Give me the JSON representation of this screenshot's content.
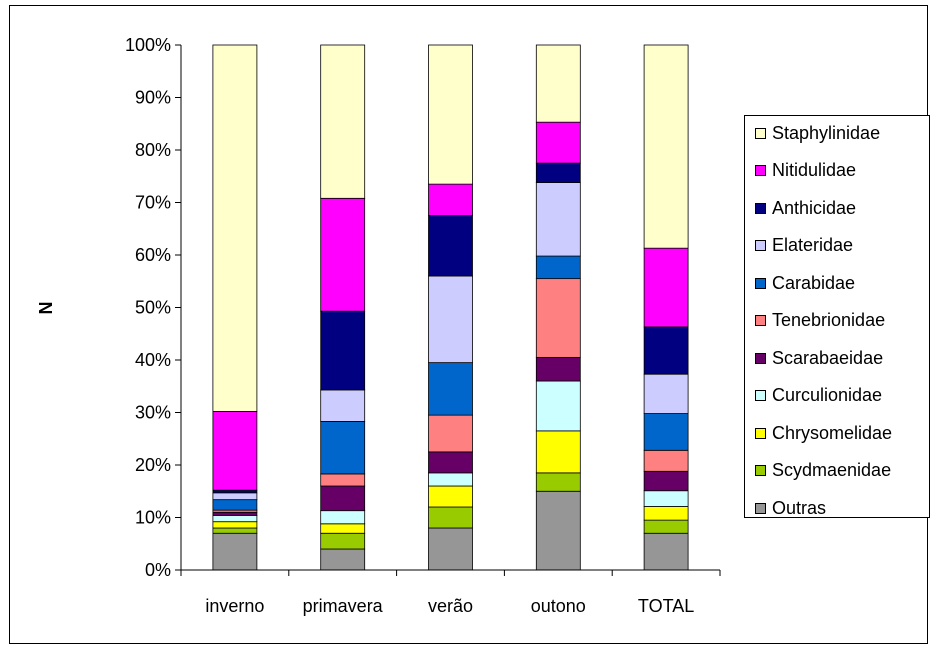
{
  "chart_data": {
    "type": "bar",
    "stacked": "percent",
    "categories": [
      "inverno",
      "primavera",
      "verão",
      "outono",
      "TOTAL"
    ],
    "ylabel": "N",
    "ylim": [
      0,
      100
    ],
    "yticks": [
      "0%",
      "10%",
      "20%",
      "30%",
      "40%",
      "50%",
      "60%",
      "70%",
      "80%",
      "90%",
      "100%"
    ],
    "grid": false,
    "legend_position": "right",
    "series": [
      {
        "name": "Outras",
        "color": "#969696",
        "values": [
          7,
          4,
          8,
          15,
          7
        ]
      },
      {
        "name": "Scydmaenidae",
        "color": "#99CC00",
        "values": [
          1,
          3,
          4,
          3.5,
          2.5
        ]
      },
      {
        "name": "Chrysomelidae",
        "color": "#FFFF00",
        "values": [
          1.2,
          1.8,
          4,
          8,
          2.6
        ]
      },
      {
        "name": "Curculionidae",
        "color": "#CCFFFF",
        "values": [
          1.2,
          2.5,
          2.5,
          9.5,
          3
        ]
      },
      {
        "name": "Scarabaeidae",
        "color": "#660066",
        "values": [
          0.6,
          4.7,
          4,
          4.5,
          3.7
        ]
      },
      {
        "name": "Tenebrionidae",
        "color": "#FF8080",
        "values": [
          0.4,
          2.3,
          7,
          15,
          4
        ]
      },
      {
        "name": "Carabidae",
        "color": "#0066CC",
        "values": [
          2,
          10,
          10,
          4.3,
          7
        ]
      },
      {
        "name": "Elateridae",
        "color": "#CCCCFF",
        "values": [
          1.3,
          6,
          16.5,
          14,
          7.5
        ]
      },
      {
        "name": "Anthicidae",
        "color": "#000080",
        "values": [
          0.5,
          15,
          11.5,
          3.7,
          9
        ]
      },
      {
        "name": "Nitidulidae",
        "color": "#FF00FF",
        "values": [
          15,
          21.5,
          6,
          7.8,
          15
        ]
      },
      {
        "name": "Staphylinidae",
        "color": "#FFFFCC",
        "values": [
          69.8,
          29.2,
          26.5,
          14.7,
          38.7
        ]
      }
    ]
  }
}
